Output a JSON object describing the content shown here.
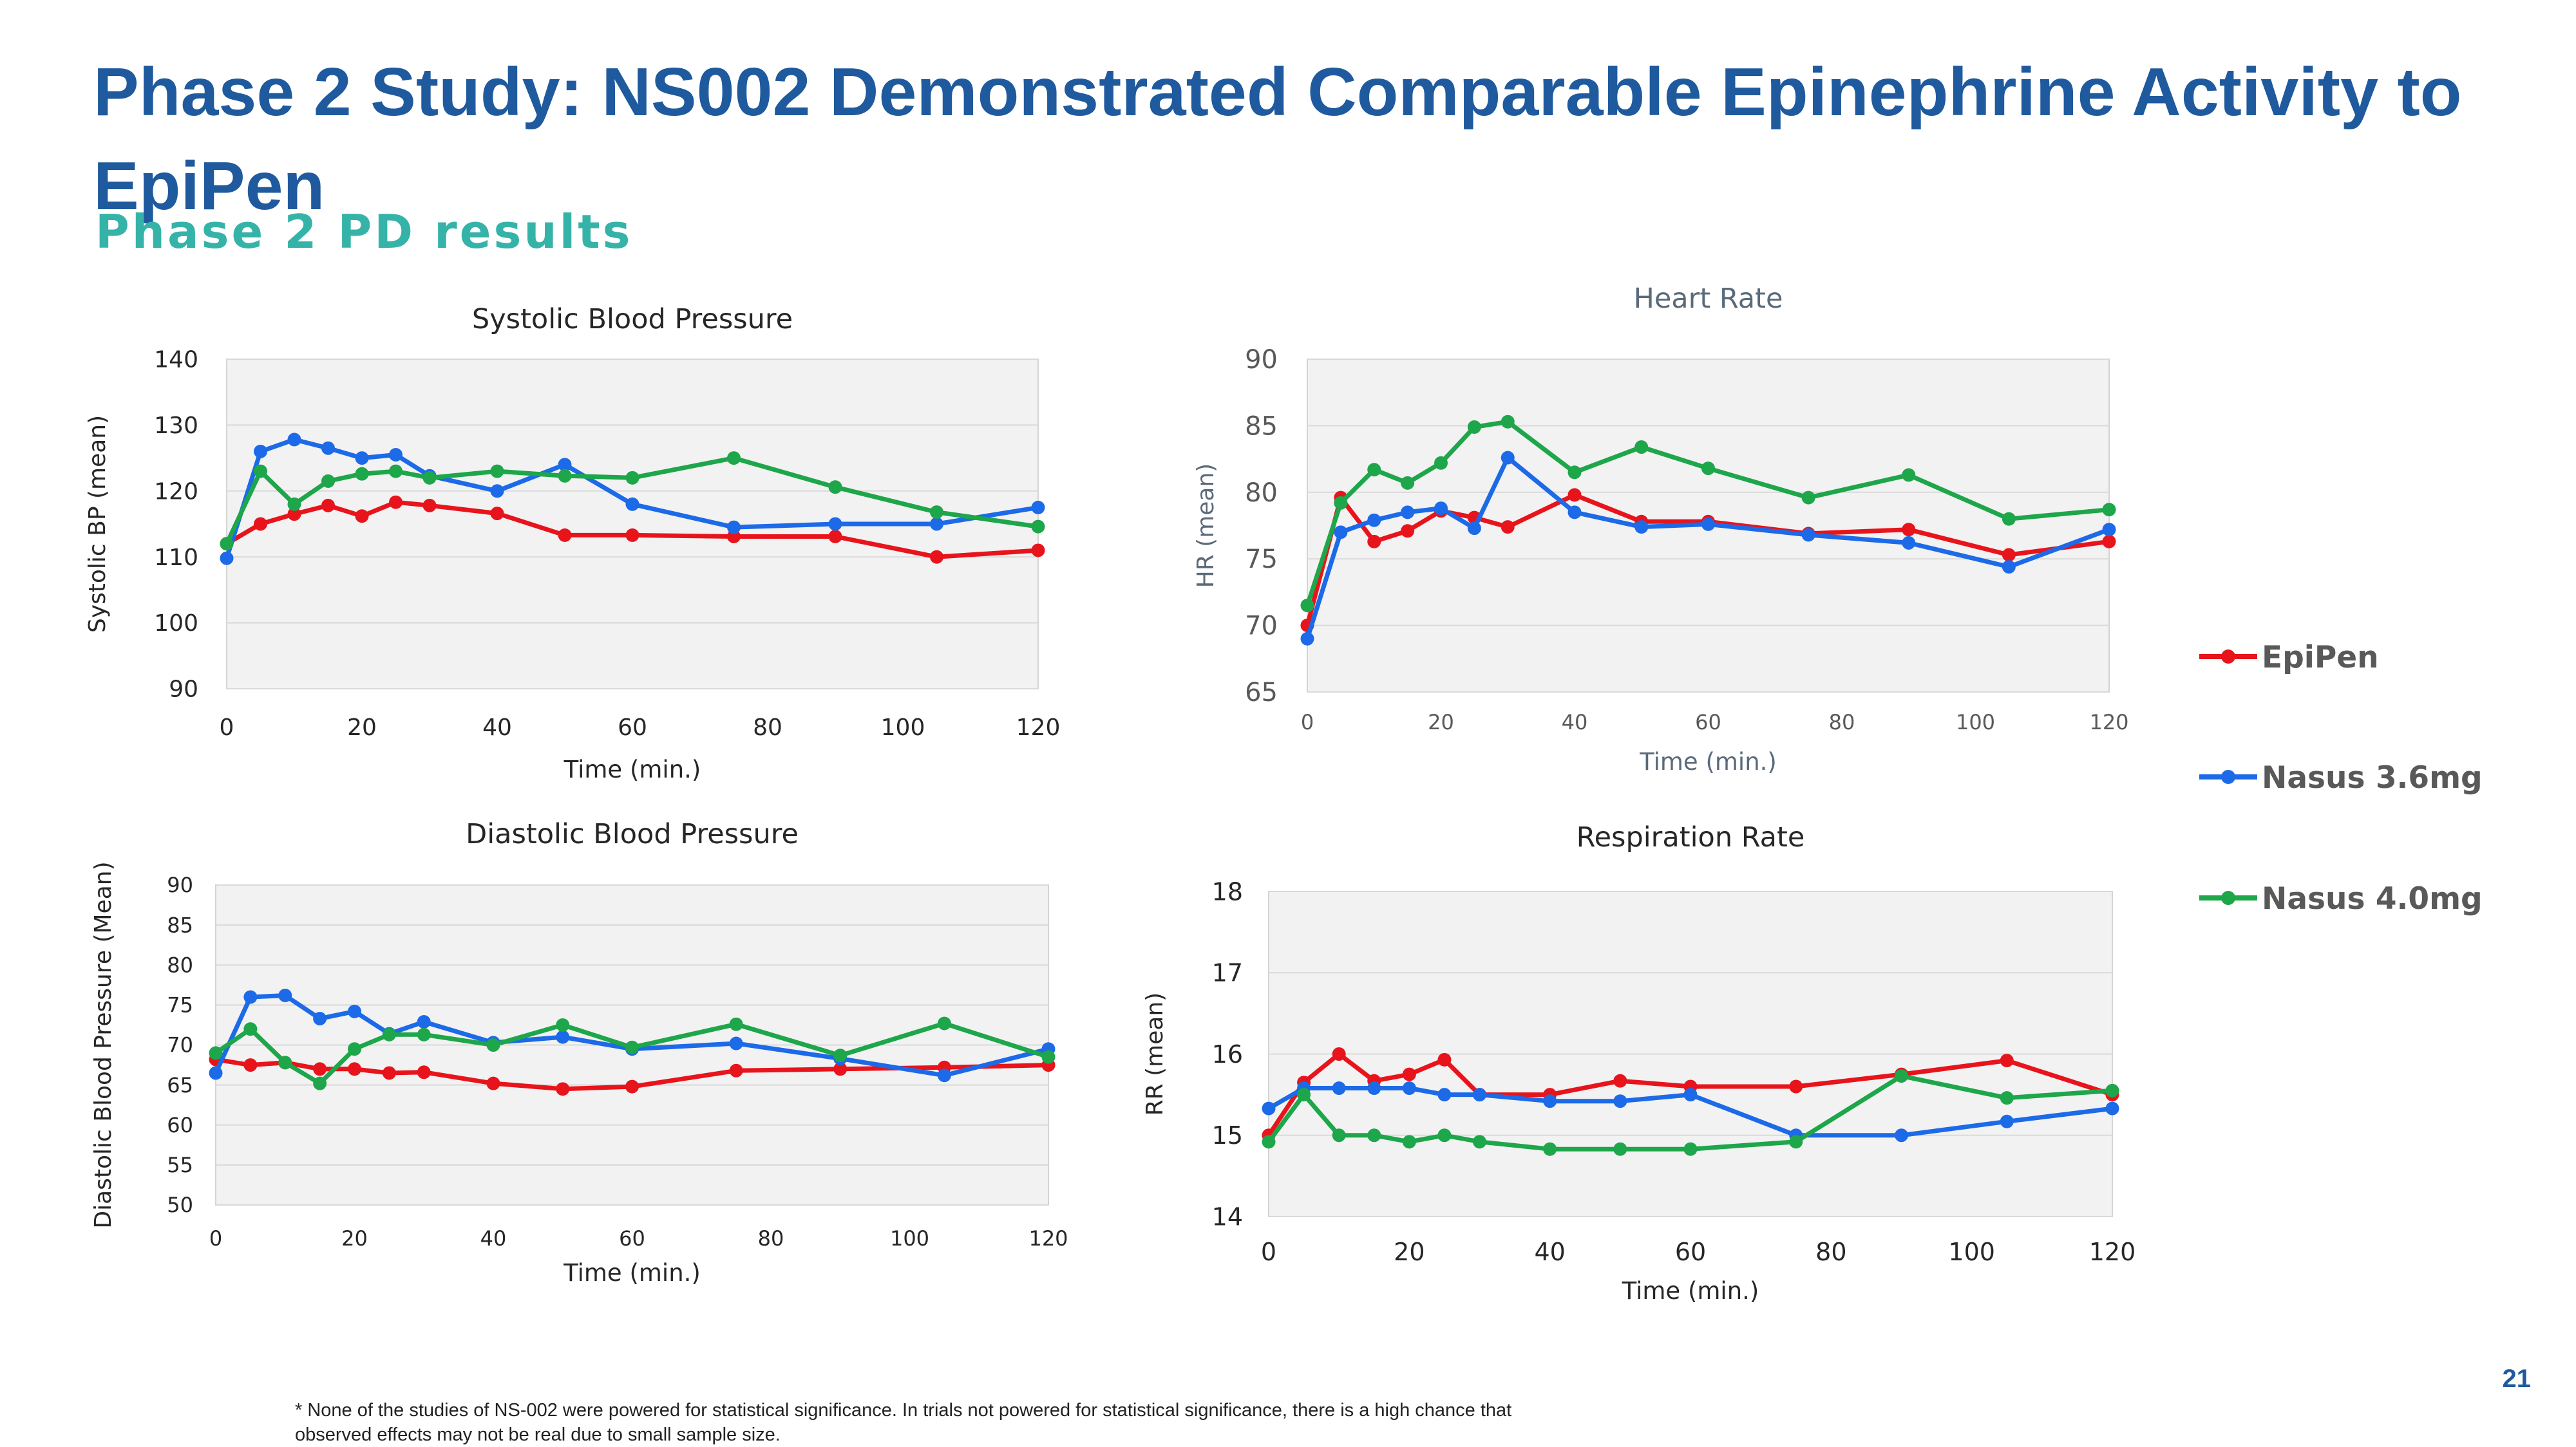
{
  "title": "Phase 2 Study: NS002 Demonstrated Comparable Epinephrine Activity to EpiPen",
  "subtitle": "Phase 2 PD results",
  "footnote": "* None of the studies of NS-002 were powered for statistical significance. In trials not powered for statistical significance, there is a high chance that observed effects may not be real due to small sample size.",
  "page_number": "21",
  "legend": [
    {
      "name": "EpiPen",
      "color": "#e8141c"
    },
    {
      "name": "Nasus 3.6mg",
      "color": "#1c6ae8"
    },
    {
      "name": "Nasus 4.0mg",
      "color": "#1ea64a"
    }
  ],
  "chart_data": [
    {
      "type": "line",
      "title": "Systolic Blood Pressure",
      "xlabel": "Time (min.)",
      "ylabel": "Systolic BP (mean)",
      "xlim": [
        0,
        120
      ],
      "ylim": [
        90,
        140
      ],
      "xticks": [
        0,
        20,
        40,
        60,
        80,
        100,
        120
      ],
      "yticks": [
        90,
        100,
        110,
        120,
        130,
        140
      ],
      "grid": true,
      "legend": "right",
      "series": [
        {
          "name": "EpiPen",
          "x": [
            0,
            5,
            10,
            15,
            20,
            25,
            30,
            40,
            50,
            60,
            75,
            90,
            105,
            120
          ],
          "values": [
            112,
            115,
            116.5,
            117.8,
            116.2,
            118.3,
            117.8,
            116.6,
            113.3,
            113.3,
            113.1,
            113.1,
            110,
            111
          ]
        },
        {
          "name": "Nasus 3.6mg",
          "x": [
            0,
            5,
            10,
            15,
            20,
            25,
            30,
            40,
            50,
            60,
            75,
            90,
            105,
            120
          ],
          "values": [
            109.8,
            126,
            127.8,
            126.5,
            125,
            125.5,
            122.3,
            120,
            124,
            118,
            114.5,
            115,
            115,
            117.5
          ]
        },
        {
          "name": "Nasus 4.0mg",
          "x": [
            0,
            5,
            10,
            15,
            20,
            25,
            30,
            40,
            50,
            60,
            75,
            90,
            105,
            120
          ],
          "values": [
            112,
            123,
            118,
            121.5,
            122.6,
            123,
            122,
            123,
            122.3,
            122,
            125,
            120.6,
            116.8,
            114.6
          ]
        }
      ]
    },
    {
      "type": "line",
      "title": "Heart Rate",
      "xlabel": "Time (min.)",
      "ylabel": "HR (mean)",
      "xlim": [
        0,
        120
      ],
      "ylim": [
        65,
        90
      ],
      "xticks": [
        0,
        20,
        40,
        60,
        80,
        100,
        120
      ],
      "yticks": [
        65,
        70,
        75,
        80,
        85,
        90
      ],
      "grid": true,
      "legend": "right",
      "series": [
        {
          "name": "EpiPen",
          "x": [
            0,
            5,
            10,
            15,
            20,
            25,
            30,
            40,
            50,
            60,
            75,
            90,
            105,
            120
          ],
          "values": [
            70,
            79.6,
            76.3,
            77.1,
            78.6,
            78.1,
            77.4,
            79.8,
            77.8,
            77.8,
            76.9,
            77.2,
            75.3,
            76.3
          ]
        },
        {
          "name": "Nasus 3.6mg",
          "x": [
            0,
            5,
            10,
            15,
            20,
            25,
            30,
            40,
            50,
            60,
            75,
            90,
            105,
            120
          ],
          "values": [
            69,
            77,
            77.9,
            78.5,
            78.8,
            77.3,
            82.6,
            78.5,
            77.4,
            77.6,
            76.8,
            76.2,
            74.4,
            77.2
          ]
        },
        {
          "name": "Nasus 4.0mg",
          "x": [
            0,
            5,
            10,
            15,
            20,
            25,
            30,
            40,
            50,
            60,
            75,
            90,
            105,
            120
          ],
          "values": [
            71.5,
            79.2,
            81.7,
            80.7,
            82.2,
            84.9,
            85.3,
            81.5,
            83.4,
            81.8,
            79.6,
            81.3,
            78,
            78.7
          ]
        }
      ]
    },
    {
      "type": "line",
      "title": "Diastolic Blood Pressure",
      "xlabel": "Time (min.)",
      "ylabel": "Diastolic Blood Pressure (Mean)",
      "xlim": [
        0,
        120
      ],
      "ylim": [
        50,
        90
      ],
      "xticks": [
        0,
        20,
        40,
        60,
        80,
        100,
        120
      ],
      "yticks": [
        50,
        55,
        60,
        65,
        70,
        75,
        80,
        85,
        90
      ],
      "grid": true,
      "legend": "right",
      "series": [
        {
          "name": "EpiPen",
          "x": [
            0,
            5,
            10,
            15,
            20,
            25,
            30,
            40,
            50,
            60,
            75,
            90,
            105,
            120
          ],
          "values": [
            68.2,
            67.5,
            67.8,
            67,
            67,
            66.5,
            66.6,
            65.2,
            64.5,
            64.8,
            66.8,
            67,
            67.2,
            67.5
          ]
        },
        {
          "name": "Nasus 3.6mg",
          "x": [
            0,
            5,
            10,
            15,
            20,
            25,
            30,
            40,
            50,
            60,
            75,
            90,
            105,
            120
          ],
          "values": [
            66.5,
            76,
            76.2,
            73.3,
            74.2,
            71.4,
            72.9,
            70.3,
            71,
            69.5,
            70.2,
            68.3,
            66.2,
            69.5
          ]
        },
        {
          "name": "Nasus 4.0mg",
          "x": [
            0,
            5,
            10,
            15,
            20,
            25,
            30,
            40,
            50,
            60,
            75,
            90,
            105,
            120
          ],
          "values": [
            69,
            72,
            67.8,
            65.2,
            69.5,
            71.3,
            71.3,
            70,
            72.5,
            69.7,
            72.6,
            68.7,
            72.7,
            68.5
          ]
        }
      ]
    },
    {
      "type": "line",
      "title": "Respiration Rate",
      "xlabel": "Time (min.)",
      "ylabel": "RR (mean)",
      "xlim": [
        0,
        120
      ],
      "ylim": [
        14,
        18
      ],
      "xticks": [
        0,
        20,
        40,
        60,
        80,
        100,
        120
      ],
      "yticks": [
        14,
        15,
        16,
        17,
        18
      ],
      "grid": true,
      "legend": "right",
      "series": [
        {
          "name": "EpiPen",
          "x": [
            0,
            5,
            10,
            15,
            20,
            25,
            30,
            40,
            50,
            60,
            75,
            90,
            105,
            120
          ],
          "values": [
            15,
            15.65,
            16,
            15.67,
            15.75,
            15.93,
            15.5,
            15.5,
            15.67,
            15.6,
            15.6,
            15.75,
            15.92,
            15.5
          ]
        },
        {
          "name": "Nasus 3.6mg",
          "x": [
            0,
            5,
            10,
            15,
            20,
            25,
            30,
            40,
            50,
            60,
            75,
            90,
            105,
            120
          ],
          "values": [
            15.33,
            15.58,
            15.58,
            15.58,
            15.58,
            15.5,
            15.5,
            15.42,
            15.42,
            15.5,
            15,
            15,
            15.17,
            15.33
          ]
        },
        {
          "name": "Nasus 4.0mg",
          "x": [
            0,
            5,
            10,
            15,
            20,
            25,
            30,
            40,
            50,
            60,
            75,
            90,
            105,
            120
          ],
          "values": [
            14.92,
            15.5,
            15,
            15,
            14.92,
            15,
            14.92,
            14.83,
            14.83,
            14.83,
            14.92,
            15.73,
            15.46,
            15.55
          ]
        }
      ]
    }
  ]
}
